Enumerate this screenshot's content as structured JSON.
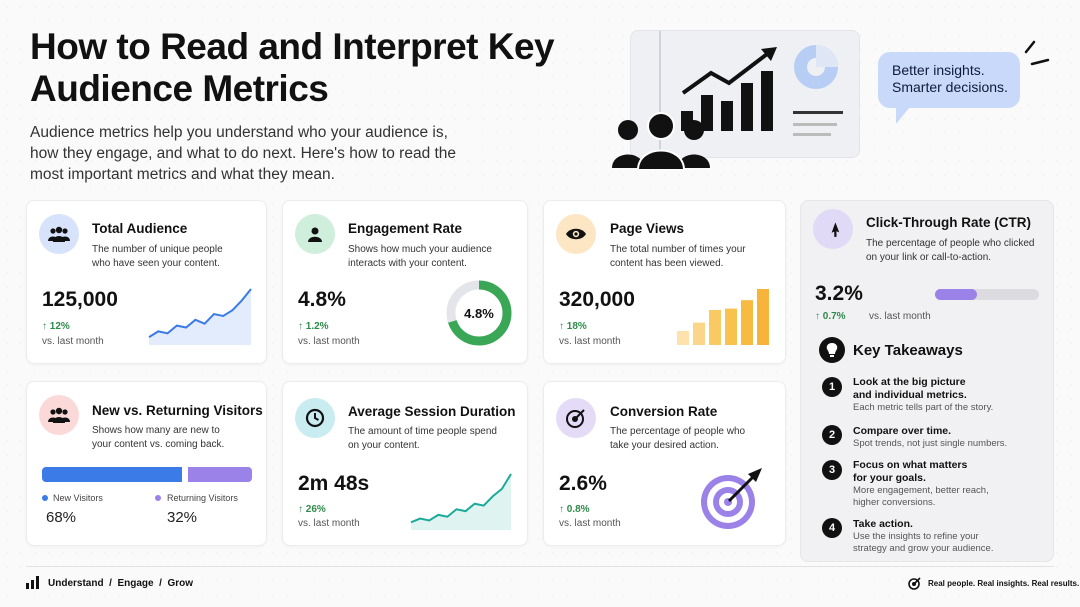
{
  "title": "How to Read and Interpret Key Audience Metrics",
  "intro": "Audience metrics help you understand who your audience is, how they engage, and what to do next. Here's how to read the most important metrics and what they mean.",
  "bubble": [
    "Better insights.",
    "Smarter decisions."
  ],
  "cards": {
    "total_audience": {
      "title": "Total Audience",
      "desc": "The number of unique people who have seen your content.",
      "value": "125,000",
      "delta": "↑ 12%",
      "vs": "vs. last month",
      "trend": [
        3,
        6,
        5,
        9,
        8,
        12,
        10,
        15,
        14,
        17,
        22,
        28
      ]
    },
    "engagement_rate": {
      "title": "Engagement Rate",
      "desc": "Shows how much your audience interacts with your content.",
      "value": "4.8%",
      "delta": "↑ 1.2%",
      "vs": "vs. last month",
      "donut_label": "4.8%",
      "donut_fraction": 0.7
    },
    "page_views": {
      "title": "Page Views",
      "desc": "The total number of times your content has been viewed.",
      "value": "320,000",
      "delta": "↑ 18%",
      "vs": "vs. last month",
      "bars": [
        1,
        1.6,
        2.5,
        2.6,
        3.2,
        4.0
      ]
    },
    "ctr": {
      "title": "Click-Through Rate (CTR)",
      "desc": "The percentage of people who clicked on your link or call-to-action.",
      "value": "3.2%",
      "delta": "↑ 0.7%",
      "vs": "vs. last month",
      "progress": 0.4
    },
    "new_returning": {
      "title": "New vs. Returning Visitors",
      "desc": "Shows how many are new to your content vs. coming back.",
      "new_label": "New Visitors",
      "new_value": "68%",
      "new_fraction": 0.68,
      "ret_label": "Returning Visitors",
      "ret_value": "32%"
    },
    "session_duration": {
      "title": "Average Session Duration",
      "desc": "The amount of time people spend on your content.",
      "value": "2m 48s",
      "delta": "↑ 26%",
      "vs": "vs. last month",
      "trend": [
        4,
        6,
        5,
        8,
        7,
        11,
        10,
        14,
        13,
        18,
        22,
        30
      ]
    },
    "conversion_rate": {
      "title": "Conversion Rate",
      "desc": "The percentage of people who take your desired action.",
      "value": "2.6%",
      "delta": "↑ 0.8%",
      "vs": "vs. last month"
    }
  },
  "takeaways": {
    "heading": "Key Takeaways",
    "items": [
      {
        "n": "1",
        "h": "Look at the big picture and individual metrics.",
        "s": "Each metric tells part of the story."
      },
      {
        "n": "2",
        "h": "Compare over time.",
        "s": "Spot trends, not just single numbers."
      },
      {
        "n": "3",
        "h": "Focus on what matters for your goals.",
        "s": "More engagement, better reach, higher conversions."
      },
      {
        "n": "4",
        "h": "Take action.",
        "s": "Use the insights to refine your strategy and grow your audience."
      }
    ]
  },
  "footer": {
    "left": "Understand  /  Engage  /  Grow",
    "right": "Real people. Real insights. Real results."
  },
  "colors": {
    "blue": "#3b7be8",
    "green": "#3aa757",
    "orange": "#f6b53a",
    "purple": "#9b82e8",
    "delta_green": "#2e8b4a"
  }
}
